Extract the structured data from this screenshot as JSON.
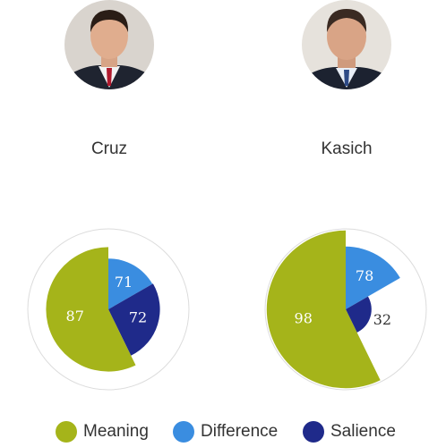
{
  "chart_data": {
    "type": "pie",
    "series": [
      {
        "name": "Meaning",
        "color": "#a5b41a"
      },
      {
        "name": "Difference",
        "color": "#3a8de0"
      },
      {
        "name": "Salience",
        "color": "#1f2a8a"
      }
    ],
    "max_value": 100,
    "charts": [
      {
        "candidate": "Cruz",
        "values": {
          "Meaning": 87,
          "Difference": 71,
          "Salience": 72
        }
      },
      {
        "candidate": "Kasich",
        "values": {
          "Meaning": 98,
          "Difference": 78,
          "Salience": 32
        }
      }
    ]
  },
  "candidates": [
    {
      "name": "Cruz",
      "portrait": "portrait-photo"
    },
    {
      "name": "Kasich",
      "portrait": "portrait-photo"
    }
  ],
  "legend": [
    {
      "label": "Meaning",
      "color": "#a5b41a"
    },
    {
      "label": "Difference",
      "color": "#3a8de0"
    },
    {
      "label": "Salience",
      "color": "#1f2a8a"
    }
  ]
}
